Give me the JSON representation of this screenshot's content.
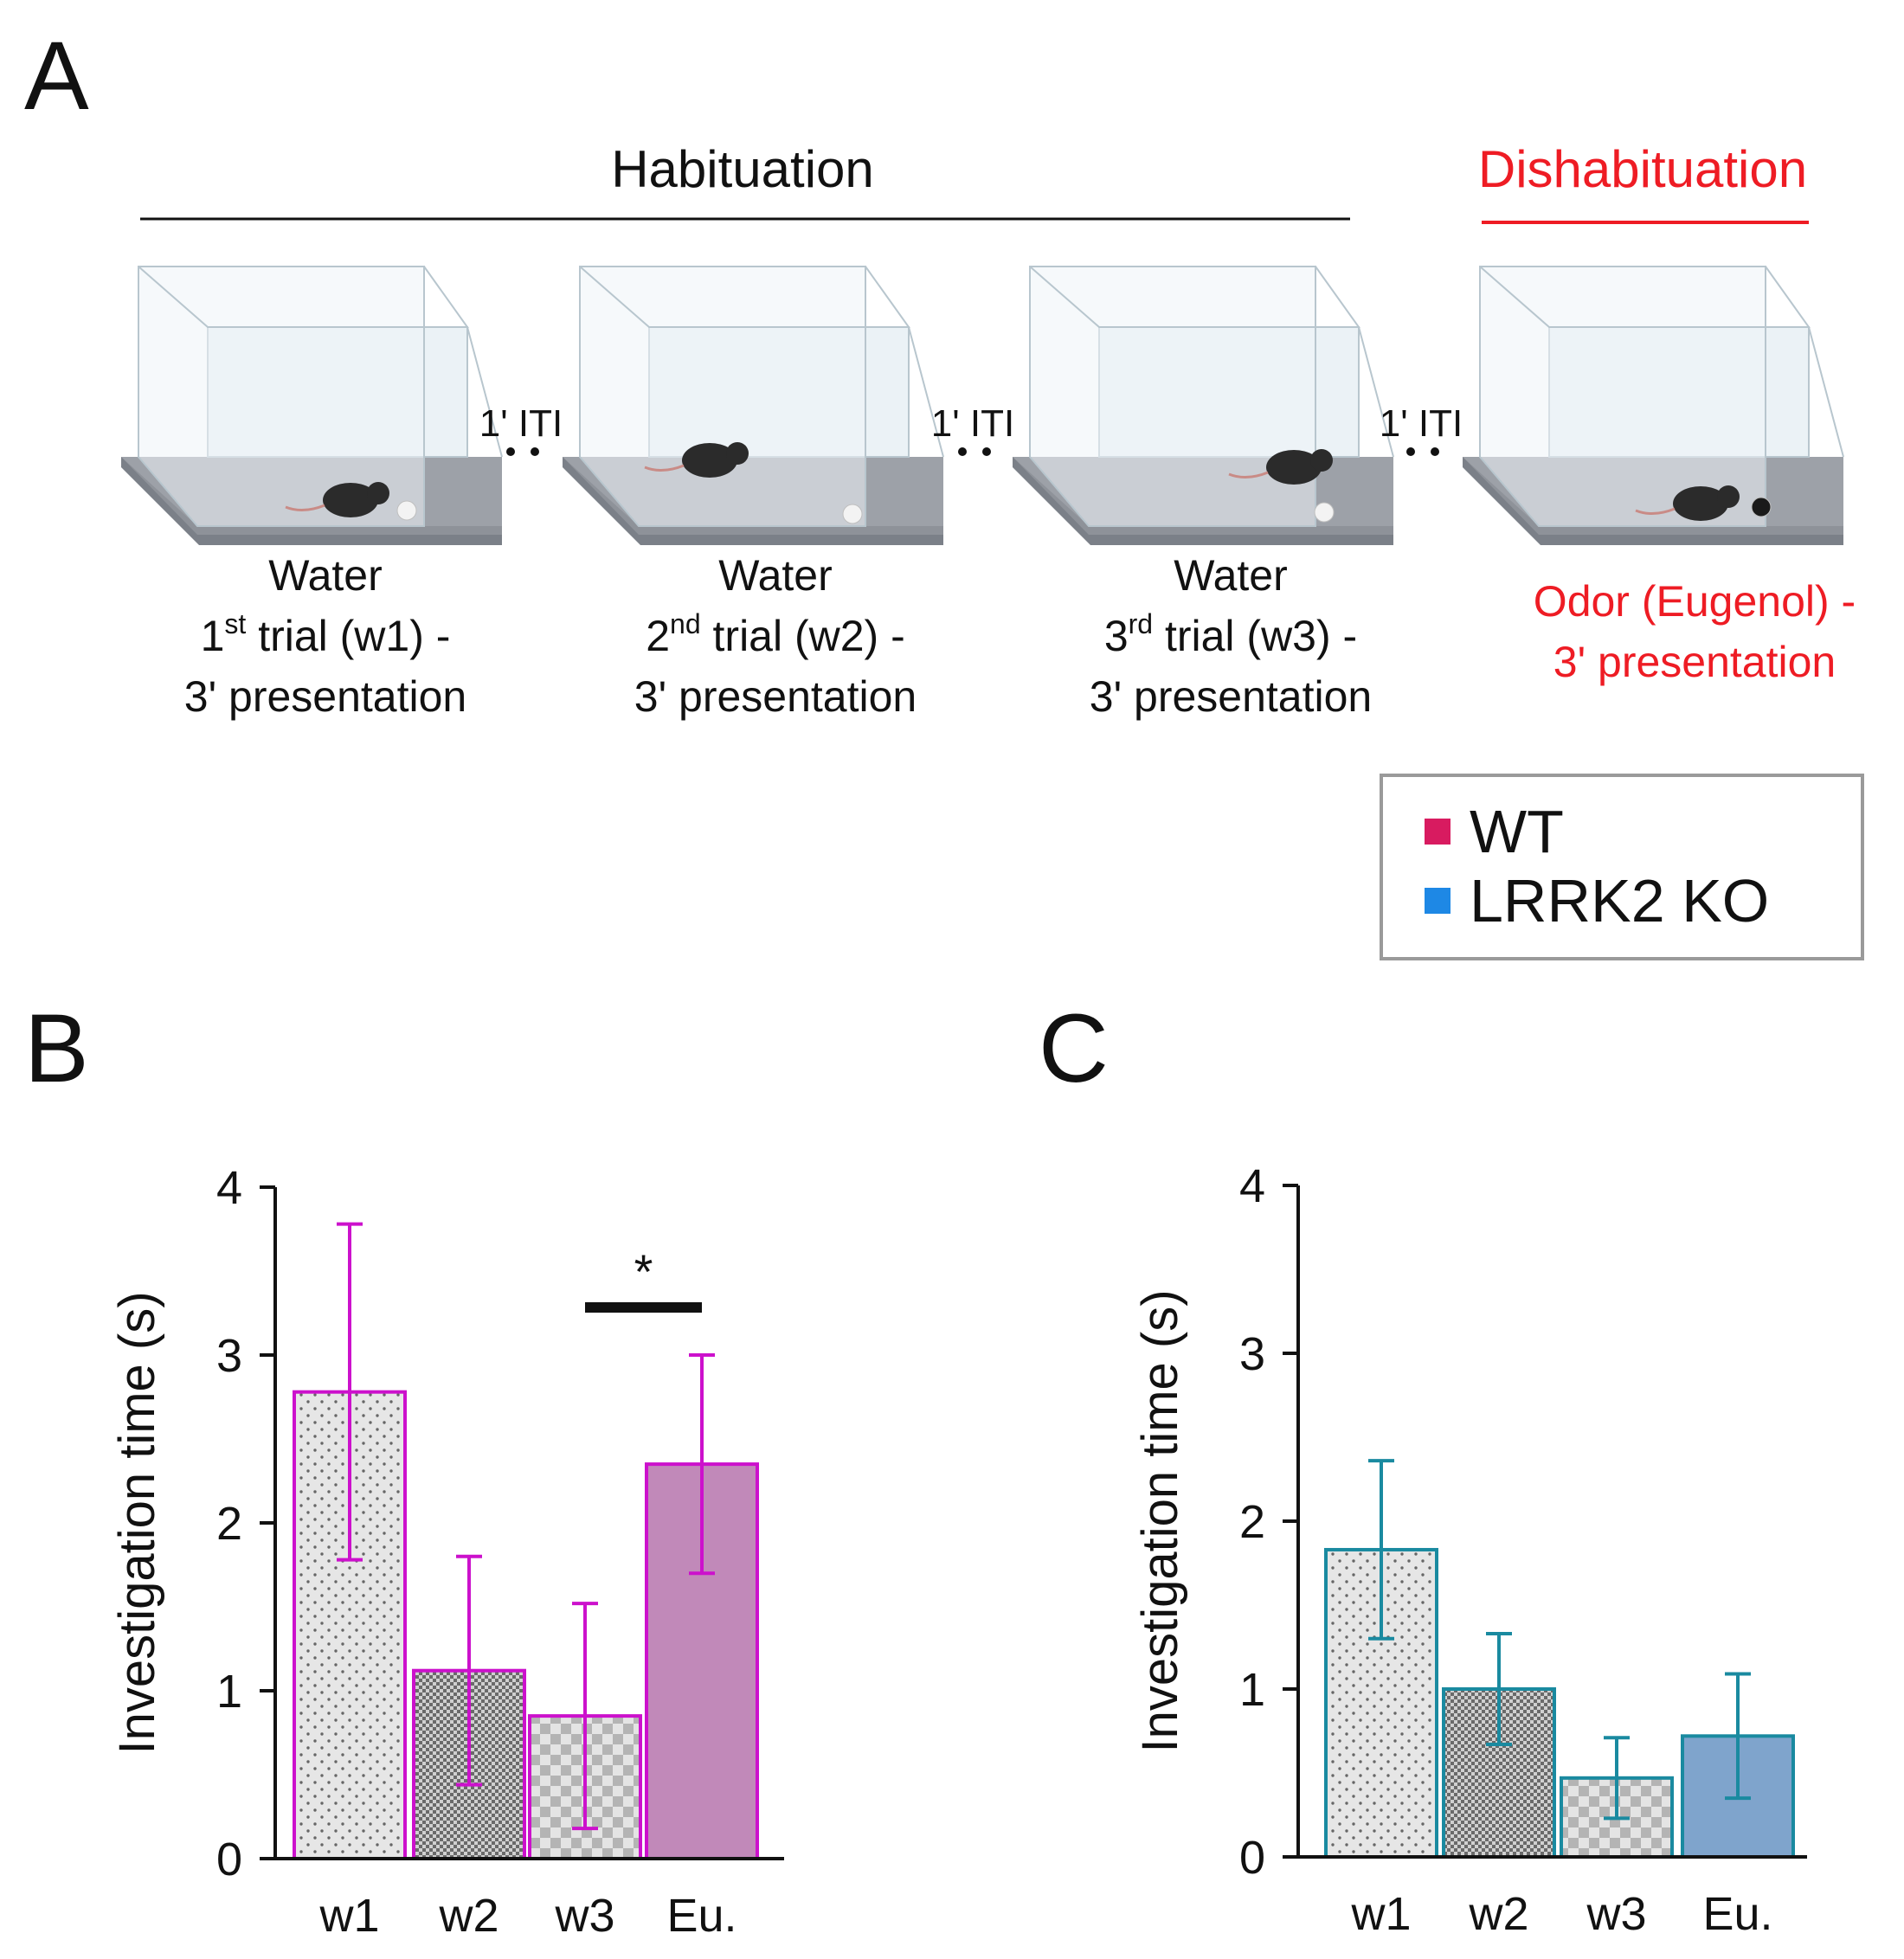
{
  "panels": {
    "A": "A",
    "B": "B",
    "C": "C"
  },
  "protocol": {
    "habituation_label": "Habituation",
    "dishabituation_label": "Dishabituation",
    "iti_label": "1' ITI",
    "trials": [
      {
        "line1": "Water",
        "ordinal": "1",
        "sup": "st",
        "rest": " trial (w1) -",
        "line3": "3' presentation"
      },
      {
        "line1": "Water",
        "ordinal": "2",
        "sup": "nd",
        "rest": " trial (w2) -",
        "line3": "3' presentation"
      },
      {
        "line1": "Water",
        "ordinal": "3",
        "sup": "rd",
        "rest": " trial (w3) -",
        "line3": "3' presentation"
      },
      {
        "line1": "Odor (Eugenol) -",
        "line2": "3' presentation"
      }
    ]
  },
  "legend": {
    "items": [
      {
        "label": "WT",
        "color": "#d81b60"
      },
      {
        "label": "LRRK2 KO",
        "color": "#1e88e5"
      }
    ]
  },
  "colors": {
    "wt_accent": "#cc11cc",
    "wt_fill": "#c189b9",
    "ko_accent": "#1a8aa0",
    "ko_fill": "#7fa4cc",
    "dishab_red": "#ee1c24"
  },
  "chart_data": [
    {
      "panel": "B",
      "type": "bar",
      "group": "WT",
      "categories": [
        "w1",
        "w2",
        "w3",
        "Eu."
      ],
      "values": [
        2.78,
        1.12,
        0.85,
        2.35
      ],
      "errors": [
        1.0,
        0.68,
        0.67,
        0.65
      ],
      "ylabel": "Investigation time (s)",
      "ylim": [
        0,
        4
      ],
      "yticks": [
        0,
        1,
        2,
        3,
        4
      ],
      "significance": {
        "from": "w3",
        "to": "Eu.",
        "label": "*"
      }
    },
    {
      "panel": "C",
      "type": "bar",
      "group": "LRRK2 KO",
      "categories": [
        "w1",
        "w2",
        "w3",
        "Eu."
      ],
      "values": [
        1.83,
        1.0,
        0.47,
        0.72
      ],
      "errors": [
        0.53,
        0.33,
        0.24,
        0.37
      ],
      "ylabel": "Investigation time (s)",
      "ylim": [
        0,
        4
      ],
      "yticks": [
        0,
        1,
        2,
        3,
        4
      ]
    }
  ]
}
